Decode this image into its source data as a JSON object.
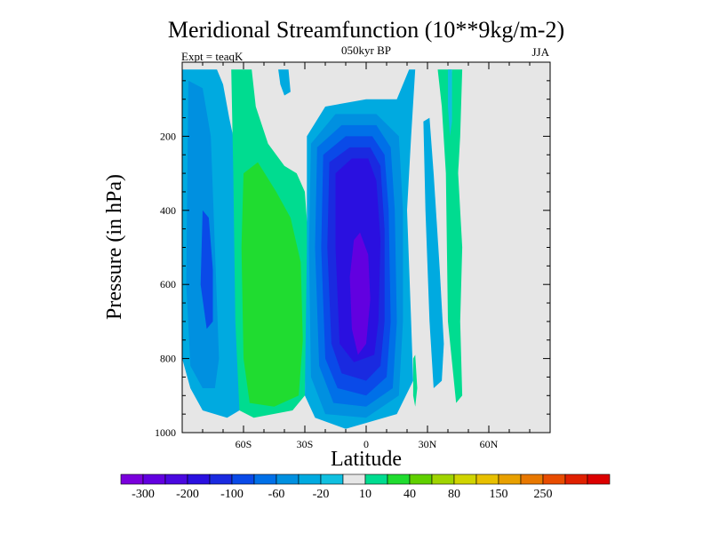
{
  "chart_data": {
    "type": "heatmap",
    "title": "Meridional Streamfunction (10**9kg/m-2)",
    "subtitle": "050kyr BP",
    "experiment": "Expt = teaqK",
    "season": "JJA",
    "xlabel": "Latitude",
    "ylabel": "Pressure (in hPa)",
    "xlim": [
      -90,
      90
    ],
    "ylim": [
      1000,
      0
    ],
    "x_ticks": [
      {
        "value": -60,
        "label": "60S"
      },
      {
        "value": -30,
        "label": "30S"
      },
      {
        "value": 0,
        "label": "0"
      },
      {
        "value": 30,
        "label": "30N"
      },
      {
        "value": 60,
        "label": "60N"
      }
    ],
    "y_ticks": [
      {
        "value": 200,
        "label": "200"
      },
      {
        "value": 400,
        "label": "400"
      },
      {
        "value": 600,
        "label": "600"
      },
      {
        "value": 800,
        "label": "800"
      },
      {
        "value": 1000,
        "label": "1000"
      }
    ],
    "colorbar": {
      "colors": [
        "#7a00dc",
        "#6200e0",
        "#4a08e0",
        "#2a10e0",
        "#1a2ae0",
        "#0a4ae8",
        "#0070e8",
        "#0090e0",
        "#00aae0",
        "#10c0e0",
        "#e6e6e6",
        "#00dc90",
        "#20dc30",
        "#60d000",
        "#a0d400",
        "#d0d400",
        "#e8c000",
        "#e8a000",
        "#e87800",
        "#e84c00",
        "#e02000",
        "#dc0000"
      ],
      "labels": [
        {
          "after_box": 1,
          "text": "-300"
        },
        {
          "after_box": 3,
          "text": "-200"
        },
        {
          "after_box": 5,
          "text": "-100"
        },
        {
          "after_box": 7,
          "text": "-60"
        },
        {
          "after_box": 9,
          "text": "-20"
        },
        {
          "after_box": 11,
          "text": "10"
        },
        {
          "after_box": 13,
          "text": "40"
        },
        {
          "after_box": 15,
          "text": "80"
        },
        {
          "after_box": 17,
          "text": "150"
        },
        {
          "after_box": 19,
          "text": "250"
        }
      ]
    },
    "regions": [
      {
        "name": "sh-cyan-cell",
        "color": "#00aae0",
        "polygon": [
          [
            -90,
            20
          ],
          [
            -73,
            20
          ],
          [
            -70,
            60
          ],
          [
            -67,
            150
          ],
          [
            -62,
            280
          ],
          [
            -60,
            800
          ],
          [
            -62,
            940
          ],
          [
            -68,
            960
          ],
          [
            -80,
            940
          ],
          [
            -86,
            880
          ],
          [
            -90,
            800
          ]
        ]
      },
      {
        "name": "sh-blue-cell",
        "color": "#0090e0",
        "polygon": [
          [
            -87,
            50
          ],
          [
            -80,
            70
          ],
          [
            -76,
            200
          ],
          [
            -74,
            500
          ],
          [
            -72,
            800
          ],
          [
            -74,
            880
          ],
          [
            -80,
            880
          ],
          [
            -86,
            820
          ],
          [
            -88,
            600
          ]
        ]
      },
      {
        "name": "sh-deep-blue-cell",
        "color": "#0a4ae8",
        "polygon": [
          [
            -80,
            400
          ],
          [
            -77,
            420
          ],
          [
            -75,
            560
          ],
          [
            -75,
            700
          ],
          [
            -78,
            720
          ],
          [
            -81,
            600
          ]
        ]
      },
      {
        "name": "sh-green-cell",
        "color": "#00dc90",
        "polygon": [
          [
            -66,
            20
          ],
          [
            -56,
            20
          ],
          [
            -54,
            120
          ],
          [
            -48,
            220
          ],
          [
            -40,
            280
          ],
          [
            -34,
            300
          ],
          [
            -30,
            350
          ],
          [
            -28,
            500
          ],
          [
            -29,
            700
          ],
          [
            -30,
            900
          ],
          [
            -36,
            940
          ],
          [
            -55,
            960
          ],
          [
            -62,
            940
          ],
          [
            -64,
            700
          ],
          [
            -65,
            300
          ]
        ]
      },
      {
        "name": "sh-bright-green-cell",
        "color": "#20dc30",
        "polygon": [
          [
            -60,
            300
          ],
          [
            -53,
            270
          ],
          [
            -44,
            350
          ],
          [
            -37,
            420
          ],
          [
            -32,
            540
          ],
          [
            -31,
            750
          ],
          [
            -33,
            900
          ],
          [
            -45,
            930
          ],
          [
            -57,
            920
          ],
          [
            -60,
            800
          ],
          [
            -61,
            500
          ]
        ]
      },
      {
        "name": "nh-thin-cyan-band",
        "color": "#00aae0",
        "polygon": [
          [
            -43,
            20
          ],
          [
            -38,
            20
          ],
          [
            -37,
            80
          ],
          [
            -40,
            90
          ],
          [
            -42,
            60
          ]
        ]
      },
      {
        "name": "equatorial-cell-outer",
        "color": "#00aae0",
        "polygon": [
          [
            -29,
            200
          ],
          [
            -20,
            120
          ],
          [
            0,
            100
          ],
          [
            15,
            100
          ],
          [
            21,
            20
          ],
          [
            24,
            20
          ],
          [
            22,
            200
          ],
          [
            20,
            400
          ],
          [
            22,
            700
          ],
          [
            23,
            860
          ],
          [
            15,
            950
          ],
          [
            -10,
            990
          ],
          [
            -25,
            960
          ],
          [
            -30,
            900
          ],
          [
            -29,
            500
          ]
        ]
      },
      {
        "name": "equatorial-cell-2",
        "color": "#0090e0",
        "polygon": [
          [
            -27,
            220
          ],
          [
            -15,
            140
          ],
          [
            5,
            140
          ],
          [
            16,
            200
          ],
          [
            18,
            400
          ],
          [
            18,
            700
          ],
          [
            16,
            900
          ],
          [
            0,
            960
          ],
          [
            -20,
            950
          ],
          [
            -27,
            850
          ],
          [
            -28,
            500
          ]
        ]
      },
      {
        "name": "equatorial-cell-3",
        "color": "#0070e8",
        "polygon": [
          [
            -24,
            230
          ],
          [
            -12,
            170
          ],
          [
            5,
            170
          ],
          [
            12,
            230
          ],
          [
            14,
            400
          ],
          [
            15,
            700
          ],
          [
            13,
            880
          ],
          [
            0,
            930
          ],
          [
            -16,
            920
          ],
          [
            -23,
            820
          ],
          [
            -25,
            500
          ]
        ]
      },
      {
        "name": "equatorial-cell-4",
        "color": "#0a4ae8",
        "polygon": [
          [
            -21,
            250
          ],
          [
            -10,
            200
          ],
          [
            3,
            200
          ],
          [
            9,
            250
          ],
          [
            11,
            400
          ],
          [
            12,
            700
          ],
          [
            10,
            850
          ],
          [
            0,
            900
          ],
          [
            -14,
            880
          ],
          [
            -20,
            800
          ],
          [
            -22,
            500
          ]
        ]
      },
      {
        "name": "equatorial-cell-5",
        "color": "#1a2ae0",
        "polygon": [
          [
            -18,
            270
          ],
          [
            -8,
            230
          ],
          [
            2,
            230
          ],
          [
            7,
            280
          ],
          [
            9,
            450
          ],
          [
            9,
            700
          ],
          [
            7,
            820
          ],
          [
            0,
            860
          ],
          [
            -12,
            840
          ],
          [
            -17,
            760
          ],
          [
            -19,
            500
          ]
        ]
      },
      {
        "name": "equatorial-cell-6",
        "color": "#2a10e0",
        "polygon": [
          [
            -15,
            300
          ],
          [
            -7,
            260
          ],
          [
            1,
            260
          ],
          [
            5,
            320
          ],
          [
            7,
            480
          ],
          [
            6,
            700
          ],
          [
            4,
            790
          ],
          [
            -6,
            810
          ],
          [
            -13,
            760
          ],
          [
            -15,
            500
          ]
        ]
      },
      {
        "name": "equatorial-cell-core",
        "color": "#6200e0",
        "polygon": [
          [
            -6,
            480
          ],
          [
            -3,
            460
          ],
          [
            1,
            520
          ],
          [
            2,
            640
          ],
          [
            0,
            760
          ],
          [
            -4,
            790
          ],
          [
            -7,
            720
          ],
          [
            -8,
            580
          ]
        ]
      },
      {
        "name": "nh-tropical-cyan-band",
        "color": "#00aae0",
        "polygon": [
          [
            28,
            160
          ],
          [
            31,
            150
          ],
          [
            33,
            300
          ],
          [
            36,
            560
          ],
          [
            38,
            760
          ],
          [
            37,
            860
          ],
          [
            33,
            880
          ],
          [
            31,
            700
          ],
          [
            29,
            400
          ]
        ]
      },
      {
        "name": "nh-small-cyan-patch",
        "color": "#00aae0",
        "polygon": [
          [
            33,
            660
          ],
          [
            35,
            650
          ],
          [
            36,
            800
          ],
          [
            34,
            820
          ],
          [
            33,
            760
          ]
        ]
      },
      {
        "name": "nh-green-plume",
        "color": "#00dc90",
        "polygon": [
          [
            23,
            800
          ],
          [
            24,
            790
          ],
          [
            25,
            880
          ],
          [
            24,
            930
          ],
          [
            23,
            900
          ]
        ]
      },
      {
        "name": "nh-green-column",
        "color": "#00dc90",
        "polygon": [
          [
            35,
            20
          ],
          [
            42,
            20
          ],
          [
            44,
            120
          ],
          [
            45,
            300
          ],
          [
            47,
            500
          ],
          [
            46,
            700
          ],
          [
            47,
            900
          ],
          [
            44,
            920
          ],
          [
            40,
            700
          ],
          [
            39,
            300
          ],
          [
            37,
            120
          ]
        ]
      },
      {
        "name": "nh-green-column-2",
        "color": "#00dc90",
        "polygon": [
          [
            42,
            20
          ],
          [
            47,
            20
          ],
          [
            46,
            200
          ],
          [
            45,
            300
          ],
          [
            44,
            200
          ]
        ]
      },
      {
        "name": "nh-cyan-strip",
        "color": "#10c0e0",
        "polygon": [
          [
            40,
            20
          ],
          [
            42,
            20
          ],
          [
            42,
            160
          ],
          [
            41,
            200
          ],
          [
            40,
            120
          ]
        ]
      }
    ]
  }
}
